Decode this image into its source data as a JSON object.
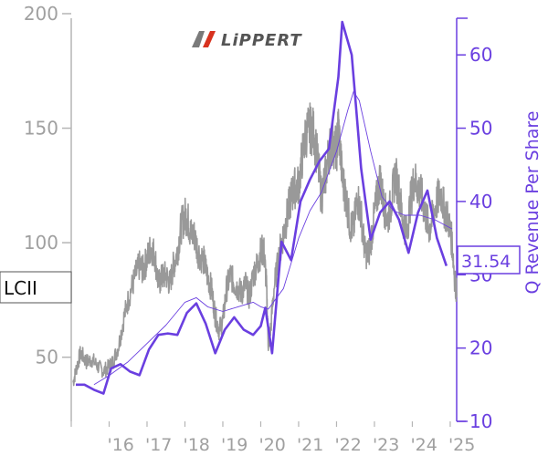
{
  "ticker_label": "LCII",
  "logo_text": "LiPPERT",
  "chart_data": {
    "type": "line",
    "title": "",
    "xlabel": "",
    "y_left": {
      "ticks": [
        50,
        100,
        150,
        200
      ],
      "range": [
        22,
        198
      ]
    },
    "y_right": {
      "label": "Q Revenue Per Share",
      "ticks": [
        10,
        20,
        30,
        40,
        50,
        60
      ],
      "range": [
        10,
        65
      ]
    },
    "x": {
      "tick_labels": [
        "'16",
        "'17",
        "'18",
        "'19",
        "'20",
        "'21",
        "'22",
        "'23",
        "'24",
        "'25"
      ],
      "tick_years": [
        2016,
        2017,
        2018,
        2019,
        2020,
        2021,
        2022,
        2023,
        2024,
        2025
      ],
      "range": [
        2015.0,
        2025.17
      ]
    },
    "colors": {
      "price": "#999999",
      "revenue": "#6a3fe0",
      "axis_left": "#b5b5b5",
      "axis_right": "#6a3fe0",
      "tick_text_left": "#a0a0a0"
    },
    "series": [
      {
        "role": "price",
        "axis": "left",
        "points": [
          [
            2015.05,
            39
          ],
          [
            2015.15,
            46
          ],
          [
            2015.25,
            52
          ],
          [
            2015.4,
            48
          ],
          [
            2015.55,
            49
          ],
          [
            2015.7,
            46
          ],
          [
            2015.85,
            44
          ],
          [
            2016.0,
            46
          ],
          [
            2016.1,
            48
          ],
          [
            2016.25,
            55
          ],
          [
            2016.4,
            68
          ],
          [
            2016.55,
            78
          ],
          [
            2016.7,
            86
          ],
          [
            2016.8,
            90
          ],
          [
            2016.9,
            88
          ],
          [
            2017.0,
            93
          ],
          [
            2017.1,
            98
          ],
          [
            2017.2,
            95
          ],
          [
            2017.3,
            82
          ],
          [
            2017.4,
            85
          ],
          [
            2017.5,
            86
          ],
          [
            2017.6,
            82
          ],
          [
            2017.7,
            90
          ],
          [
            2017.8,
            96
          ],
          [
            2017.9,
            107
          ],
          [
            2018.0,
            112
          ],
          [
            2018.08,
            110
          ],
          [
            2018.15,
            104
          ],
          [
            2018.25,
            103
          ],
          [
            2018.35,
            96
          ],
          [
            2018.5,
            92
          ],
          [
            2018.6,
            85
          ],
          [
            2018.7,
            80
          ],
          [
            2018.8,
            68
          ],
          [
            2018.9,
            62
          ],
          [
            2019.0,
            66
          ],
          [
            2019.1,
            80
          ],
          [
            2019.2,
            86
          ],
          [
            2019.3,
            82
          ],
          [
            2019.4,
            80
          ],
          [
            2019.5,
            78
          ],
          [
            2019.6,
            82
          ],
          [
            2019.7,
            76
          ],
          [
            2019.8,
            86
          ],
          [
            2019.9,
            90
          ],
          [
            2020.0,
            96
          ],
          [
            2020.08,
            97
          ],
          [
            2020.15,
            82
          ],
          [
            2020.2,
            56
          ],
          [
            2020.25,
            60
          ],
          [
            2020.35,
            80
          ],
          [
            2020.5,
            96
          ],
          [
            2020.6,
            104
          ],
          [
            2020.7,
            112
          ],
          [
            2020.8,
            120
          ],
          [
            2020.9,
            124
          ],
          [
            2021.0,
            125
          ],
          [
            2021.1,
            138
          ],
          [
            2021.2,
            148
          ],
          [
            2021.3,
            150
          ],
          [
            2021.4,
            148
          ],
          [
            2021.5,
            136
          ],
          [
            2021.6,
            120
          ],
          [
            2021.7,
            128
          ],
          [
            2021.8,
            140
          ],
          [
            2021.9,
            144
          ],
          [
            2022.0,
            140
          ],
          [
            2022.05,
            152
          ],
          [
            2022.15,
            128
          ],
          [
            2022.25,
            120
          ],
          [
            2022.35,
            108
          ],
          [
            2022.45,
            106
          ],
          [
            2022.55,
            120
          ],
          [
            2022.65,
            112
          ],
          [
            2022.75,
            96
          ],
          [
            2022.85,
            95
          ],
          [
            2022.95,
            106
          ],
          [
            2023.05,
            118
          ],
          [
            2023.15,
            128
          ],
          [
            2023.25,
            116
          ],
          [
            2023.35,
            110
          ],
          [
            2023.45,
            118
          ],
          [
            2023.55,
            130
          ],
          [
            2023.65,
            122
          ],
          [
            2023.75,
            110
          ],
          [
            2023.85,
            104
          ],
          [
            2023.95,
            118
          ],
          [
            2024.05,
            128
          ],
          [
            2024.15,
            124
          ],
          [
            2024.25,
            120
          ],
          [
            2024.35,
            112
          ],
          [
            2024.45,
            106
          ],
          [
            2024.55,
            112
          ],
          [
            2024.65,
            118
          ],
          [
            2024.75,
            122
          ],
          [
            2024.85,
            114
          ],
          [
            2024.95,
            110
          ],
          [
            2025.05,
            100
          ],
          [
            2025.12,
            84
          ],
          [
            2025.17,
            78
          ]
        ]
      },
      {
        "role": "price_moving_average",
        "axis": "left",
        "points": [
          [
            2015.6,
            38
          ],
          [
            2016.0,
            42
          ],
          [
            2016.5,
            48
          ],
          [
            2017.0,
            56
          ],
          [
            2017.5,
            64
          ],
          [
            2018.0,
            74
          ],
          [
            2018.3,
            76
          ],
          [
            2018.6,
            72
          ],
          [
            2019.0,
            70
          ],
          [
            2019.4,
            72
          ],
          [
            2019.8,
            74
          ],
          [
            2020.0,
            72
          ],
          [
            2020.2,
            71
          ],
          [
            2020.6,
            80
          ],
          [
            2021.0,
            102
          ],
          [
            2021.3,
            114
          ],
          [
            2021.6,
            122
          ],
          [
            2022.0,
            140
          ],
          [
            2022.3,
            158
          ],
          [
            2022.45,
            166
          ],
          [
            2022.6,
            162
          ],
          [
            2022.9,
            140
          ],
          [
            2023.2,
            120
          ],
          [
            2023.5,
            114
          ],
          [
            2023.8,
            112
          ],
          [
            2024.2,
            112
          ],
          [
            2024.6,
            110
          ],
          [
            2025.05,
            106
          ]
        ]
      },
      {
        "role": "q_revenue_per_share",
        "axis": "right",
        "points": [
          [
            2015.12,
            15
          ],
          [
            2015.35,
            15
          ],
          [
            2015.6,
            14.3
          ],
          [
            2015.85,
            13.8
          ],
          [
            2016.05,
            17.2
          ],
          [
            2016.3,
            17.8
          ],
          [
            2016.55,
            16.8
          ],
          [
            2016.8,
            16.3
          ],
          [
            2017.05,
            19.8
          ],
          [
            2017.3,
            21.8
          ],
          [
            2017.55,
            22
          ],
          [
            2017.8,
            21.8
          ],
          [
            2018.05,
            24.8
          ],
          [
            2018.3,
            26.1
          ],
          [
            2018.55,
            23.3
          ],
          [
            2018.8,
            19.3
          ],
          [
            2019.05,
            22.5
          ],
          [
            2019.3,
            24.2
          ],
          [
            2019.55,
            22.5
          ],
          [
            2019.8,
            21.8
          ],
          [
            2020.0,
            23
          ],
          [
            2020.12,
            25.5
          ],
          [
            2020.3,
            19.3
          ],
          [
            2020.55,
            34.5
          ],
          [
            2020.8,
            32
          ],
          [
            2021.05,
            40
          ],
          [
            2021.3,
            43
          ],
          [
            2021.55,
            45.5
          ],
          [
            2021.8,
            47.2
          ],
          [
            2022.05,
            57
          ],
          [
            2022.15,
            64.5
          ],
          [
            2022.4,
            60
          ],
          [
            2022.65,
            44.5
          ],
          [
            2022.9,
            34.8
          ],
          [
            2023.15,
            38.5
          ],
          [
            2023.4,
            40
          ],
          [
            2023.65,
            37.5
          ],
          [
            2023.9,
            33
          ],
          [
            2024.15,
            38.5
          ],
          [
            2024.4,
            41.5
          ],
          [
            2024.65,
            35
          ],
          [
            2024.9,
            31.2
          ]
        ]
      }
    ],
    "last_value_label": "31.54"
  }
}
